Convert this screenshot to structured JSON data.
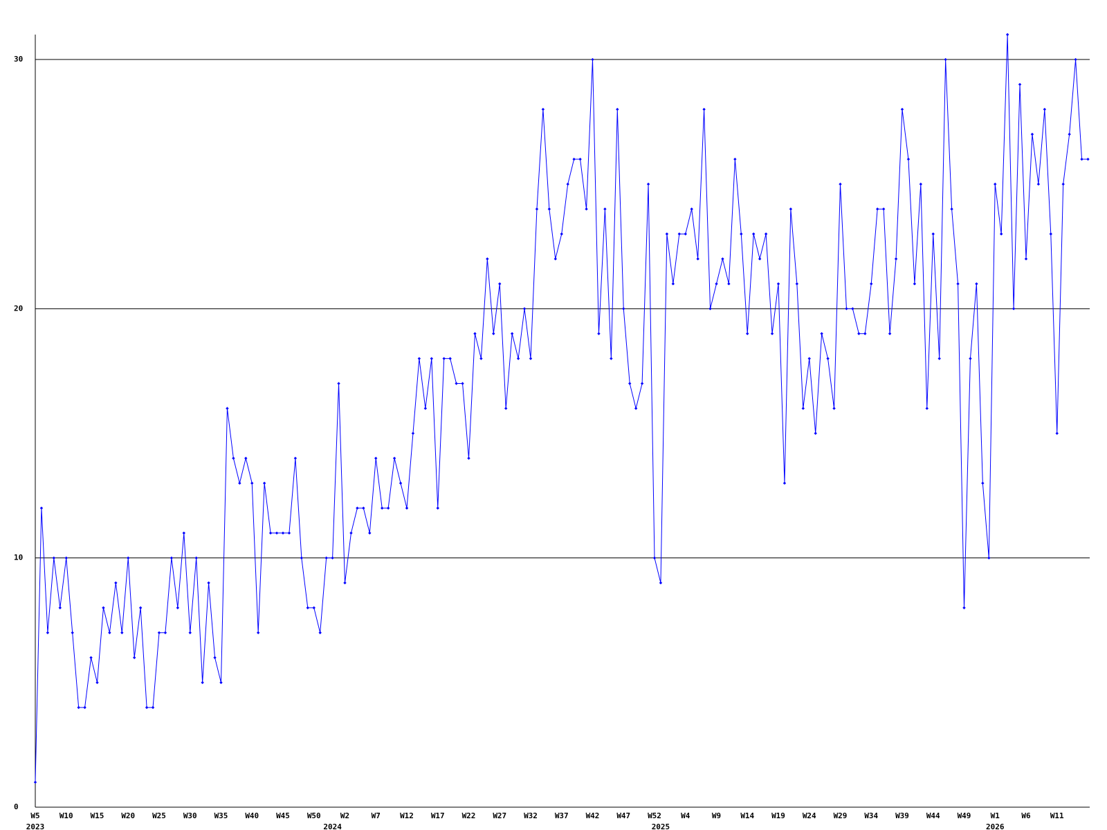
{
  "chart_data": {
    "type": "line",
    "categories": [
      "W5",
      null,
      null,
      null,
      null,
      "W10",
      null,
      null,
      null,
      null,
      "W15",
      null,
      null,
      null,
      null,
      "W20",
      null,
      null,
      null,
      null,
      "W25",
      null,
      null,
      null,
      null,
      "W30",
      null,
      null,
      null,
      null,
      "W35",
      null,
      null,
      null,
      null,
      "W40",
      null,
      null,
      null,
      null,
      "W45",
      null,
      null,
      null,
      null,
      "W50",
      null,
      null,
      null,
      null,
      "W2",
      null,
      null,
      null,
      null,
      "W7",
      null,
      null,
      null,
      null,
      "W12",
      null,
      null,
      null,
      null,
      "W17",
      null,
      null,
      null,
      null,
      "W22",
      null,
      null,
      null,
      null,
      "W27",
      null,
      null,
      null,
      null,
      "W32",
      null,
      null,
      null,
      null,
      "W37",
      null,
      null,
      null,
      null,
      "W42",
      null,
      null,
      null,
      null,
      "W47",
      null,
      null,
      null,
      null,
      "W52",
      null,
      null,
      null,
      null,
      "W4",
      null,
      null,
      null,
      null,
      "W9",
      null,
      null,
      null,
      null,
      "W14",
      null,
      null,
      null,
      null,
      "W19",
      null,
      null,
      null,
      null,
      "W24",
      null,
      null,
      null,
      null,
      "W29",
      null,
      null,
      null,
      null,
      "W34",
      null,
      null,
      null,
      null,
      "W39",
      null,
      null,
      null,
      null,
      "W44",
      null,
      null,
      null,
      null,
      "W49",
      null,
      null,
      null,
      null,
      "W1",
      null,
      null,
      null,
      null,
      "W6",
      null,
      null,
      null,
      null,
      "W11",
      null,
      null,
      null,
      null,
      null
    ],
    "year_labels": [
      {
        "value": 0,
        "label": "2023"
      },
      {
        "value": 48,
        "label": "2024"
      },
      {
        "value": 101,
        "label": "2025"
      },
      {
        "value": 155,
        "label": "2026"
      }
    ],
    "series": [
      {
        "color": "#0000ff",
        "values": [
          1,
          12,
          7,
          10,
          8,
          10,
          7,
          4,
          4,
          6,
          5,
          8,
          7,
          9,
          7,
          10,
          6,
          8,
          4,
          4,
          7,
          7,
          10,
          8,
          11,
          7,
          10,
          5,
          9,
          6,
          5,
          16,
          14,
          13,
          14,
          13,
          7,
          13,
          11,
          11,
          11,
          11,
          14,
          10,
          8,
          8,
          7,
          10,
          10,
          17,
          9,
          11,
          12,
          12,
          11,
          14,
          12,
          12,
          14,
          13,
          12,
          15,
          18,
          16,
          18,
          12,
          18,
          18,
          17,
          17,
          14,
          19,
          18,
          22,
          19,
          21,
          16,
          19,
          18,
          20,
          18,
          24,
          28,
          24,
          22,
          23,
          25,
          26,
          26,
          24,
          30,
          19,
          24,
          18,
          28,
          20,
          17,
          16,
          17,
          25,
          10,
          9,
          23,
          21,
          23,
          23,
          24,
          22,
          28,
          20,
          21,
          22,
          21,
          26,
          23,
          19,
          23,
          22,
          23,
          19,
          21,
          13,
          24,
          21,
          16,
          18,
          15,
          19,
          18,
          16,
          25,
          20,
          20,
          19,
          19,
          21,
          24,
          24,
          19,
          22,
          28,
          26,
          21,
          25,
          16,
          23,
          18,
          30,
          24,
          21,
          8,
          18,
          21,
          13,
          10,
          25,
          23,
          31,
          20,
          29,
          22,
          27,
          25,
          28,
          23,
          15,
          25,
          27,
          30,
          26,
          26
        ]
      }
    ],
    "ylim": [
      0,
      31
    ],
    "yticks": [
      0,
      10,
      20,
      30
    ],
    "grid": true
  }
}
